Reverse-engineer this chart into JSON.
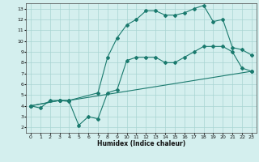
{
  "title": "",
  "xlabel": "Humidex (Indice chaleur)",
  "ylabel": "",
  "bg_color": "#d4efee",
  "grid_color": "#a8d4d2",
  "line_color": "#1a7a6e",
  "xlim": [
    -0.5,
    23.5
  ],
  "ylim": [
    1.5,
    13.5
  ],
  "xticks": [
    0,
    1,
    2,
    3,
    4,
    5,
    6,
    7,
    8,
    9,
    10,
    11,
    12,
    13,
    14,
    15,
    16,
    17,
    18,
    19,
    20,
    21,
    22,
    23
  ],
  "yticks": [
    2,
    3,
    4,
    5,
    6,
    7,
    8,
    9,
    10,
    11,
    12,
    13
  ],
  "line1_x": [
    0,
    1,
    2,
    3,
    4,
    5,
    6,
    7,
    8,
    9,
    10,
    11,
    12,
    13,
    14,
    15,
    16,
    17,
    18,
    19,
    20,
    21,
    22,
    23
  ],
  "line1_y": [
    4.0,
    3.8,
    4.5,
    4.5,
    4.4,
    2.2,
    3.0,
    2.8,
    5.2,
    5.5,
    8.2,
    8.5,
    8.5,
    8.5,
    8.0,
    8.0,
    8.5,
    9.0,
    9.5,
    9.5,
    9.5,
    9.0,
    7.5,
    7.2
  ],
  "line2_x": [
    0,
    3,
    4,
    7,
    8,
    9,
    10,
    11,
    12,
    13,
    14,
    15,
    16,
    17,
    18,
    19,
    20,
    21,
    22,
    23
  ],
  "line2_y": [
    4.0,
    4.5,
    4.5,
    5.2,
    8.5,
    10.3,
    11.5,
    12.0,
    12.8,
    12.8,
    12.4,
    12.4,
    12.6,
    13.0,
    13.3,
    11.8,
    12.0,
    9.4,
    9.2,
    8.7
  ],
  "line3_x": [
    0,
    3,
    4,
    23
  ],
  "line3_y": [
    4.0,
    4.5,
    4.5,
    7.2
  ]
}
